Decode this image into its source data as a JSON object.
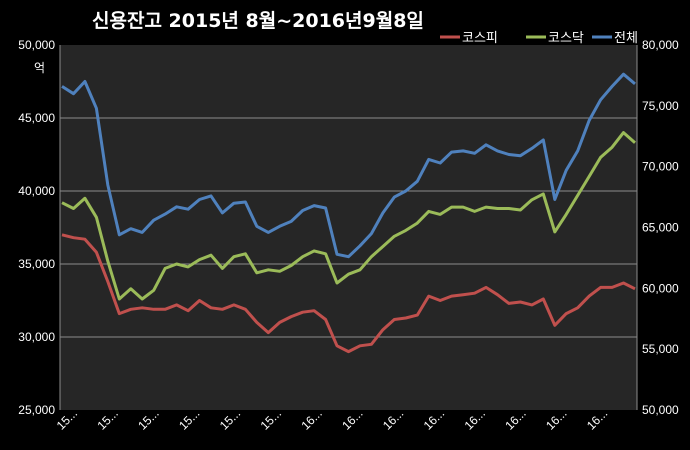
{
  "chart_data": {
    "type": "line",
    "title": "신용잔고 2015년 8월~2016년9월8일",
    "y_left_unit": "억",
    "y_left_range": [
      25000,
      50000
    ],
    "y_left_ticks": [
      "25,000",
      "30,000",
      "35,000",
      "40,000",
      "45,000",
      "50,000"
    ],
    "y_right_range": [
      50000,
      80000
    ],
    "y_right_ticks": [
      "50,000",
      "55,000",
      "60,000",
      "65,000",
      "70,000",
      "75,000",
      "80,000"
    ],
    "x_tick_labels": [
      "15...",
      "15...",
      "15...",
      "15...",
      "15...",
      "15...",
      "16...",
      "16...",
      "16...",
      "16...",
      "16...",
      "16...",
      "16...",
      "16..."
    ],
    "grid": "horizontal",
    "legend_position": "top-right",
    "x_index": [
      0,
      2,
      4,
      6,
      8,
      10,
      12,
      14,
      16,
      18,
      20,
      22,
      24,
      26,
      28,
      30,
      32,
      34,
      36,
      38,
      40,
      42,
      44,
      46,
      48,
      50,
      52,
      54,
      56,
      58,
      60,
      62,
      64,
      66,
      68,
      70,
      72,
      74,
      76,
      78,
      80,
      82,
      84,
      86,
      88,
      90,
      92,
      94,
      96,
      98,
      100
    ],
    "series": [
      {
        "name": "코스피",
        "axis": "left",
        "color": "#C0504D",
        "values": [
          37000,
          36800,
          36700,
          35800,
          33800,
          31600,
          31900,
          32000,
          31900,
          31900,
          32200,
          31800,
          32500,
          32000,
          31900,
          32200,
          31900,
          31000,
          30300,
          31000,
          31400,
          31700,
          31800,
          31200,
          29400,
          29000,
          29400,
          29500,
          30500,
          31200,
          31300,
          31500,
          32800,
          32500,
          32800,
          32900,
          33000,
          33400,
          32900,
          32300,
          32400,
          32200,
          32600,
          30800,
          31600,
          32000,
          32800,
          33400,
          33400,
          33700,
          33300
        ]
      },
      {
        "name": "코스닥",
        "axis": "left",
        "color": "#9BBB59",
        "values": [
          39200,
          38800,
          39500,
          38200,
          35200,
          32600,
          33300,
          32600,
          33200,
          34700,
          35000,
          34800,
          35300,
          35600,
          34700,
          35500,
          35700,
          34400,
          34600,
          34500,
          34900,
          35500,
          35900,
          35700,
          33700,
          34300,
          34600,
          35500,
          36200,
          36900,
          37300,
          37800,
          38600,
          38400,
          38900,
          38900,
          38600,
          38900,
          38800,
          38800,
          38700,
          39400,
          39800,
          37200,
          38400,
          39700,
          41000,
          42300,
          43000,
          44000,
          43300
        ]
      },
      {
        "name": "전체",
        "axis": "right",
        "color": "#4F81BD",
        "values": [
          76600,
          76000,
          77000,
          74800,
          68500,
          64400,
          64900,
          64600,
          65600,
          66100,
          66700,
          66500,
          67300,
          67600,
          66200,
          67000,
          67100,
          65100,
          64600,
          65100,
          65500,
          66400,
          66800,
          66600,
          62800,
          62600,
          63500,
          64500,
          66200,
          67500,
          68000,
          68800,
          70600,
          70300,
          71200,
          71300,
          71100,
          71800,
          71300,
          71000,
          70900,
          71500,
          72200,
          67300,
          69700,
          71300,
          73800,
          75500,
          76600,
          77600,
          76800
        ]
      }
    ]
  }
}
